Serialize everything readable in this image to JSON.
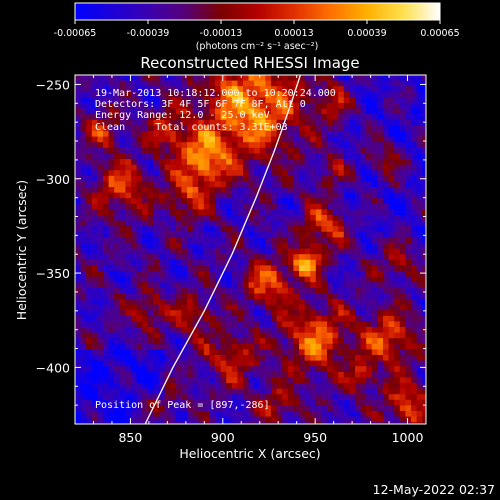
{
  "chart_data": {
    "type": "heatmap",
    "title": "Reconstructed RHESSI Image",
    "xlabel": "Heliocentric X (arcsec)",
    "ylabel": "Heliocentric Y (arcsec)",
    "xlim": [
      820,
      1010
    ],
    "ylim": [
      -430,
      -245
    ],
    "xticks": [
      850,
      900,
      950,
      1000
    ],
    "yticks": [
      -250,
      -300,
      -350,
      -400
    ],
    "colorbar": {
      "ticks": [
        "-0.00065",
        "-0.00039",
        "-0.00013",
        "0.00013",
        "0.00039",
        "0.00065"
      ],
      "range": [
        -0.00065,
        0.00065
      ],
      "unit_label": "(photons cm⁻² s⁻¹ asec⁻²)",
      "colormap": [
        "#0000ff",
        "#1c00d8",
        "#3a00b0",
        "#55007a",
        "#7a0000",
        "#b30000",
        "#e03000",
        "#ff7000",
        "#ffb000",
        "#ffe050",
        "#ffffff"
      ]
    },
    "annotations": [
      "19-Mar-2013 10:18:12.000 to 10:20:24.000",
      "Detectors: 3F 4F 5F 6F 7F 8F, Att 0",
      "Energy Range: 12.0 - 25.0 keV",
      "Clean     Total counts: 3.31E+03"
    ],
    "peak": {
      "label": "Position of Peak = [897,-286]",
      "x": 897,
      "y": -286
    },
    "limb_curve": [
      {
        "x": 858,
        "y": -430
      },
      {
        "x": 873,
        "y": -400
      },
      {
        "x": 890,
        "y": -370
      },
      {
        "x": 905,
        "y": -340
      },
      {
        "x": 918,
        "y": -310
      },
      {
        "x": 928,
        "y": -285
      },
      {
        "x": 937,
        "y": -260
      },
      {
        "x": 942,
        "y": -245
      }
    ],
    "grid": false
  },
  "footer": {
    "timestamp": "12-May-2022 02:37"
  }
}
